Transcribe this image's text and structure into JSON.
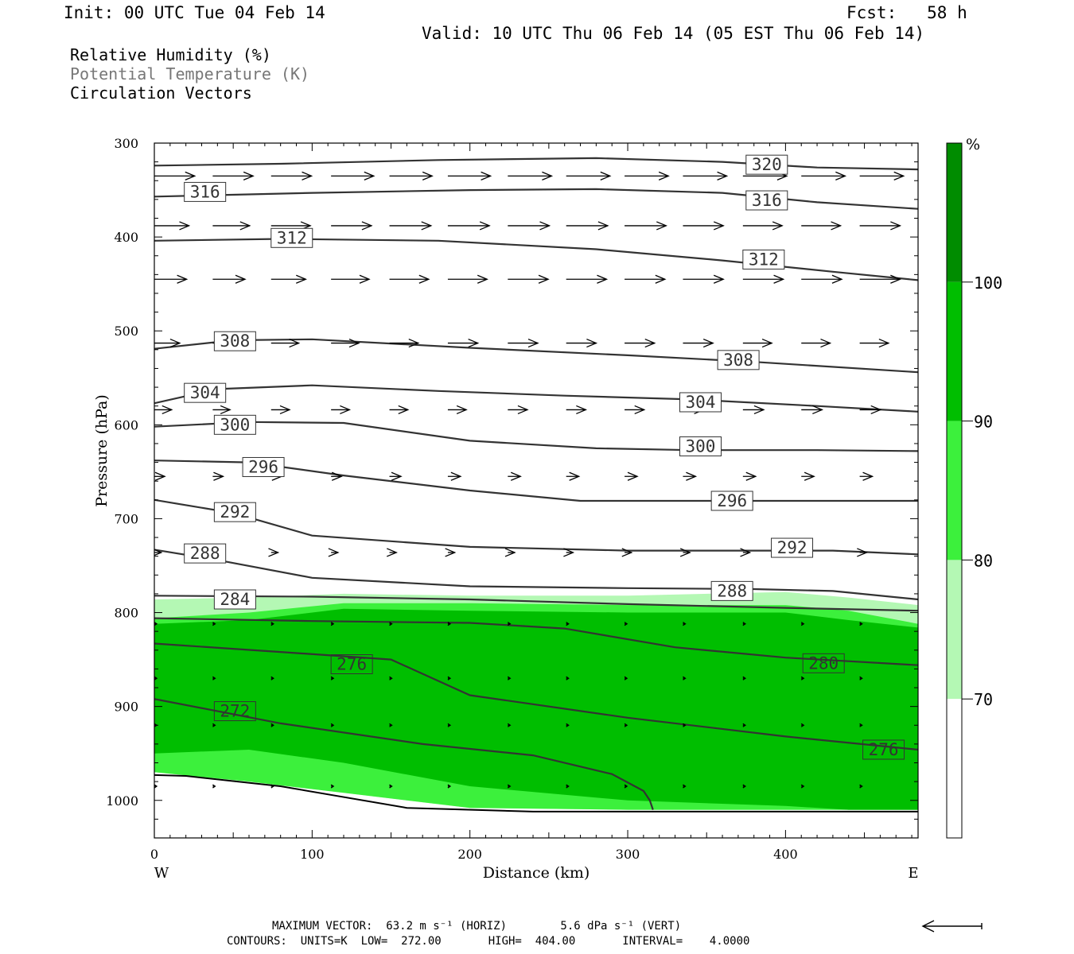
{
  "header": {
    "init": "Init: 00 UTC Tue 04 Feb 14",
    "fcst": "Fcst:   58 h",
    "valid": "Valid: 10 UTC Thu 06 Feb 14 (05 EST Thu 06 Feb 14)"
  },
  "legend": {
    "line1": "Relative Humidity (%)",
    "line2": "Potential Temperature (K)",
    "line3": "Circulation Vectors"
  },
  "footer": {
    "line1": "MAXIMUM VECTOR:  63.2 m s⁻¹ (HORIZ)        5.6 dPa s⁻¹ (VERT)",
    "line2": "CONTOURS:  UNITS=K  LOW=  272.00       HIGH=  404.00       INTERVAL=    4.0000"
  },
  "colors": {
    "rh_70_80": "#b4f8b4",
    "rh_80_90": "#3cf03c",
    "rh_90_100": "#00be00",
    "rh_100": "#008c00",
    "contour": "#333333",
    "vector": "#000000"
  },
  "chart_data": {
    "type": "cross-section",
    "xlabel": "Distance (km)",
    "ylabel": "Pressure (hPa)",
    "xlim": [
      0,
      484
    ],
    "ylim": [
      1040,
      300
    ],
    "x_ticks": [
      "0",
      "100",
      "200",
      "300",
      "400"
    ],
    "y_ticks": [
      "300",
      "400",
      "500",
      "600",
      "700",
      "800",
      "900",
      "1000"
    ],
    "x_end_labels": {
      "left": "W",
      "right": "E"
    },
    "colorbar": {
      "unit": "%",
      "levels": [
        70,
        80,
        90,
        100
      ],
      "level_labels": [
        "70",
        "80",
        "90",
        "100"
      ]
    },
    "rh_regions": [
      {
        "level": "70-80",
        "x": [
          0,
          60,
          120,
          200,
          300,
          400,
          440,
          484
        ],
        "upper_p": [
          786,
          784,
          780,
          782,
          782,
          778,
          784,
          792
        ],
        "lower_p": [
          970,
          980,
          992,
          1008,
          1010,
          1010,
          1010,
          1010
        ]
      },
      {
        "level": "80-90",
        "x": [
          0,
          60,
          120,
          200,
          300,
          400,
          440,
          484
        ],
        "upper_p": [
          806,
          800,
          790,
          790,
          792,
          792,
          798,
          812
        ],
        "lower_p": [
          970,
          980,
          992,
          1008,
          1010,
          1010,
          1010,
          1010
        ]
      },
      {
        "level": "90-100",
        "x": [
          0,
          60,
          120,
          200,
          300,
          400,
          440,
          484
        ],
        "upper_p": [
          812,
          808,
          796,
          798,
          800,
          800,
          808,
          816
        ],
        "lower_p": [
          950,
          946,
          960,
          985,
          1000,
          1006,
          1010,
          1010
        ]
      }
    ],
    "surface_pressure": {
      "x": [
        0,
        20,
        80,
        160,
        240,
        320,
        400,
        484
      ],
      "p": [
        973,
        974,
        985,
        1008,
        1012,
        1012,
        1012,
        1012
      ]
    },
    "theta_contours": [
      {
        "value": 320,
        "label": "320",
        "x": [
          0,
          80,
          180,
          280,
          360,
          420,
          484
        ],
        "p": [
          324,
          322,
          318,
          316,
          320,
          326,
          328
        ],
        "label_at": [
          375,
          323
        ]
      },
      {
        "value": 316,
        "label": "316",
        "x": [
          0,
          100,
          200,
          280,
          360,
          420,
          484
        ],
        "p": [
          357,
          353,
          350,
          349,
          353,
          363,
          370
        ],
        "label_at": [
          375,
          361
        ]
      },
      {
        "value": 312,
        "label": "312",
        "x": [
          0,
          80,
          180,
          280,
          360,
          430,
          484
        ],
        "p": [
          404,
          402,
          404,
          413,
          425,
          437,
          446
        ],
        "label_at": [
          373,
          424
        ]
      },
      {
        "value": 308,
        "label": "308",
        "x": [
          0,
          50,
          100,
          200,
          300,
          380,
          484
        ],
        "p": [
          519,
          510,
          509,
          518,
          526,
          533,
          544
        ],
        "label_at": [
          357,
          531
        ]
      },
      {
        "value": 304,
        "label": "304",
        "x": [
          0,
          40,
          100,
          180,
          260,
          340,
          420,
          484
        ],
        "p": [
          577,
          562,
          558,
          564,
          569,
          573,
          580,
          586
        ],
        "label_at": [
          333,
          576
        ]
      },
      {
        "value": 300,
        "label": "300",
        "x": [
          0,
          60,
          120,
          200,
          280,
          340,
          420,
          484
        ],
        "p": [
          602,
          597,
          598,
          617,
          625,
          627,
          627,
          628
        ],
        "label_at": [
          333,
          623
        ]
      },
      {
        "value": 296,
        "label": "296",
        "x": [
          0,
          60,
          120,
          200,
          270,
          340,
          420,
          484
        ],
        "p": [
          638,
          640,
          654,
          670,
          681,
          681,
          681,
          681
        ],
        "label_at": [
          353,
          681
        ]
      },
      {
        "value": 292,
        "label": "292",
        "x": [
          0,
          50,
          100,
          200,
          300,
          380,
          430,
          484
        ],
        "p": [
          680,
          694,
          718,
          730,
          734,
          734,
          734,
          738
        ],
        "label_at": [
          391,
          731
        ]
      },
      {
        "value": 288,
        "label": "288",
        "x": [
          0,
          40,
          100,
          200,
          300,
          380,
          430,
          484
        ],
        "p": [
          733,
          744,
          763,
          772,
          774,
          775,
          777,
          786
        ],
        "label_at": [
          353,
          777
        ]
      },
      {
        "value": 284,
        "label": "284",
        "x": [
          0,
          100,
          200,
          300,
          400,
          484
        ],
        "p": [
          782,
          783,
          786,
          791,
          795,
          798
        ],
        "label_at": [
          38,
          786
        ]
      },
      {
        "value": 280,
        "label": "280",
        "x": [
          0,
          100,
          200,
          260,
          330,
          400,
          484
        ],
        "p": [
          806,
          809,
          811,
          817,
          837,
          848,
          856
        ],
        "label_at": [
          411,
          854
        ]
      },
      {
        "value": 276,
        "label": "276",
        "x": [
          0,
          80,
          150,
          200,
          300,
          400,
          484
        ],
        "p": [
          833,
          842,
          850,
          888,
          912,
          932,
          946
        ],
        "label_at": [
          449,
          946
        ]
      },
      {
        "value": 272,
        "label": "272",
        "x": [
          0,
          80,
          170,
          240,
          290,
          310,
          314,
          316
        ],
        "p": [
          892,
          918,
          940,
          952,
          972,
          990,
          1000,
          1010
        ],
        "label_at": [
          38,
          905
        ]
      }
    ],
    "theta_extra_labels": [
      {
        "value": 316,
        "label": "316",
        "at": [
          19,
          352
        ]
      },
      {
        "value": 312,
        "label": "312",
        "at": [
          74,
          401
        ]
      },
      {
        "value": 308,
        "label": "308",
        "at": [
          38,
          511
        ]
      },
      {
        "value": 304,
        "label": "304",
        "at": [
          19,
          566
        ]
      },
      {
        "value": 300,
        "label": "300",
        "at": [
          38,
          600
        ]
      },
      {
        "value": 296,
        "label": "296",
        "at": [
          56,
          645
        ]
      },
      {
        "value": 292,
        "label": "292",
        "at": [
          38,
          693
        ]
      },
      {
        "value": 288,
        "label": "288",
        "at": [
          19,
          737
        ]
      },
      {
        "value": 276,
        "label": "276",
        "at": [
          112,
          855
        ]
      }
    ],
    "vector_rows": [
      {
        "p": 335,
        "x": [
          0,
          37,
          74,
          112,
          149,
          186,
          224,
          261,
          298,
          335,
          373,
          410,
          447,
          484
        ],
        "u": [
          35,
          35,
          35,
          37,
          37,
          37,
          38,
          38,
          38,
          38,
          38,
          38,
          38,
          38
        ]
      },
      {
        "p": 388,
        "x": [
          0,
          37,
          74,
          112,
          149,
          186,
          224,
          261,
          298,
          335,
          373,
          410,
          447,
          484
        ],
        "u": [
          30,
          32,
          34,
          35,
          36,
          36,
          36,
          36,
          36,
          35,
          34,
          34,
          35,
          35
        ]
      },
      {
        "p": 445,
        "x": [
          0,
          37,
          74,
          112,
          149,
          186,
          224,
          261,
          298,
          335,
          373,
          410,
          447
        ],
        "u": [
          28,
          28,
          30,
          33,
          34,
          34,
          35,
          35,
          35,
          35,
          35,
          35,
          35
        ]
      },
      {
        "p": 513,
        "x": [
          0,
          37,
          74,
          112,
          149,
          186,
          224,
          261,
          298,
          335,
          373,
          410,
          447
        ],
        "u": [
          22,
          24,
          24,
          24,
          25,
          26,
          26,
          26,
          26,
          26,
          25,
          25,
          25
        ]
      },
      {
        "p": 584,
        "x": [
          0,
          37,
          74,
          112,
          149,
          186,
          224,
          261,
          298,
          335,
          373,
          410,
          447
        ],
        "u": [
          15,
          15,
          16,
          16,
          16,
          16,
          17,
          17,
          17,
          18,
          18,
          18,
          18
        ]
      },
      {
        "p": 655,
        "x": [
          0,
          37,
          74,
          112,
          149,
          186,
          224,
          261,
          298,
          335,
          373,
          410,
          447
        ],
        "u": [
          9,
          9,
          9,
          9,
          10,
          11,
          11,
          11,
          11,
          11,
          11,
          11,
          11
        ]
      },
      {
        "p": 736,
        "x": [
          0,
          37,
          74,
          112,
          149,
          186,
          224,
          261,
          298,
          335,
          373,
          410,
          447
        ],
        "u": [
          6,
          6,
          6,
          6,
          6,
          6,
          6,
          6,
          6,
          6,
          6,
          6,
          6
        ]
      },
      {
        "p": 812,
        "x": [
          0,
          37,
          74,
          112,
          149,
          186,
          224,
          261,
          298,
          335,
          373,
          410,
          447
        ],
        "u": [
          2,
          2,
          2,
          2,
          2,
          1,
          1,
          1,
          1,
          1,
          1,
          1,
          1
        ]
      },
      {
        "p": 870,
        "x": [
          0,
          37,
          74,
          112,
          149,
          186,
          224,
          261,
          298,
          335,
          373,
          410,
          447
        ],
        "u": [
          1,
          1,
          1,
          1,
          1,
          1,
          1,
          1,
          1,
          1,
          1,
          1,
          1
        ]
      },
      {
        "p": 920,
        "x": [
          0,
          37,
          74,
          112,
          149,
          186,
          224,
          261,
          298,
          335,
          373,
          410,
          447
        ],
        "u": [
          1,
          1,
          1,
          1,
          1,
          1,
          1,
          1,
          1,
          1,
          1,
          1,
          1
        ]
      },
      {
        "p": 985,
        "x": [
          0,
          37,
          74,
          112,
          149,
          186,
          224,
          261,
          298,
          335,
          373,
          410,
          447
        ],
        "u": [
          1,
          1,
          1,
          1,
          1,
          1,
          1,
          1,
          1,
          1,
          1,
          1,
          1
        ]
      }
    ],
    "max_vector": {
      "horiz": "63.2 m s-1",
      "vert": "5.6 dPa s-1"
    },
    "contour_info": {
      "units": "K",
      "low": 272.0,
      "high": 404.0,
      "interval": 4.0
    }
  }
}
